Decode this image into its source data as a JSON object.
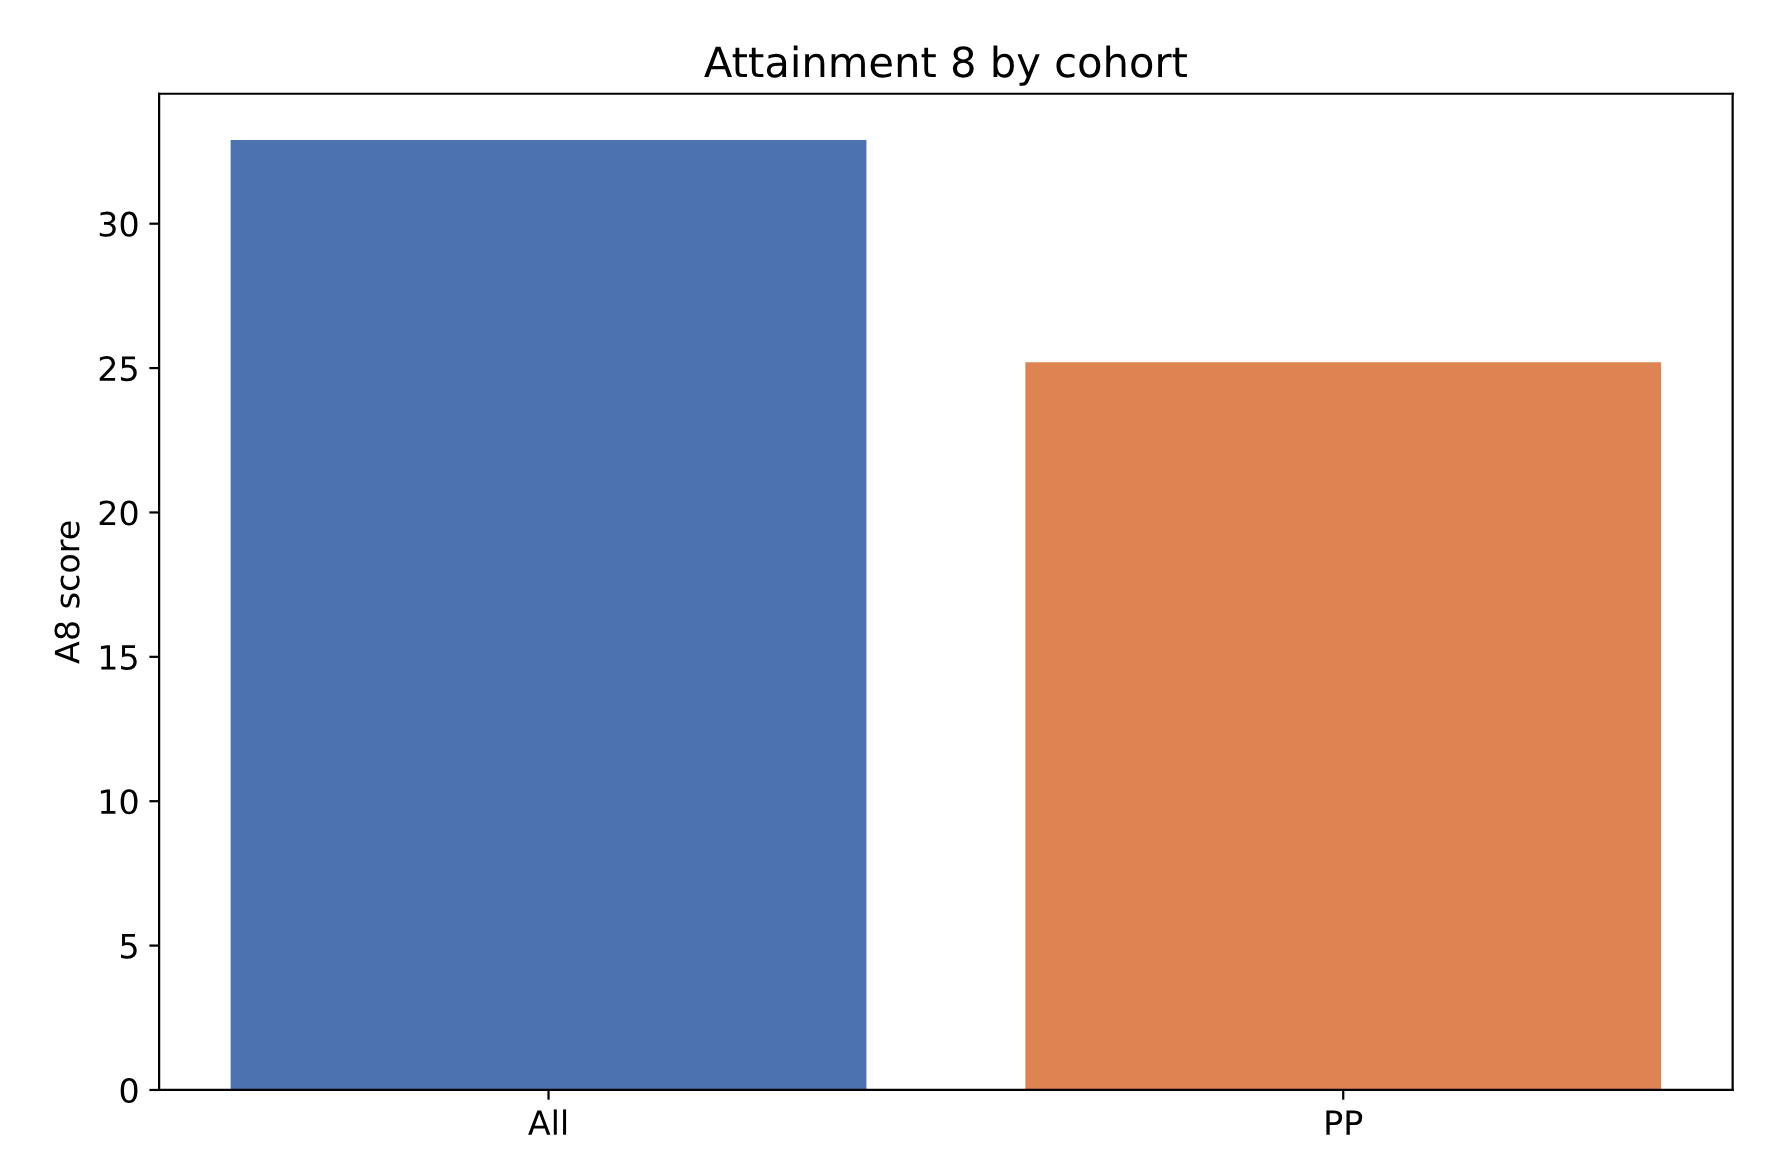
{
  "chart_data": {
    "type": "bar",
    "title": "Attainment 8 by cohort",
    "ylabel": "A8 score",
    "categories": [
      "All",
      "PP"
    ],
    "values": [
      32.9,
      25.2
    ],
    "colors": [
      "#4c72b0",
      "#dd8452"
    ],
    "ylim": [
      0,
      34.5
    ],
    "yticks": [
      0,
      5,
      10,
      15,
      20,
      25,
      30
    ],
    "grid": false
  }
}
